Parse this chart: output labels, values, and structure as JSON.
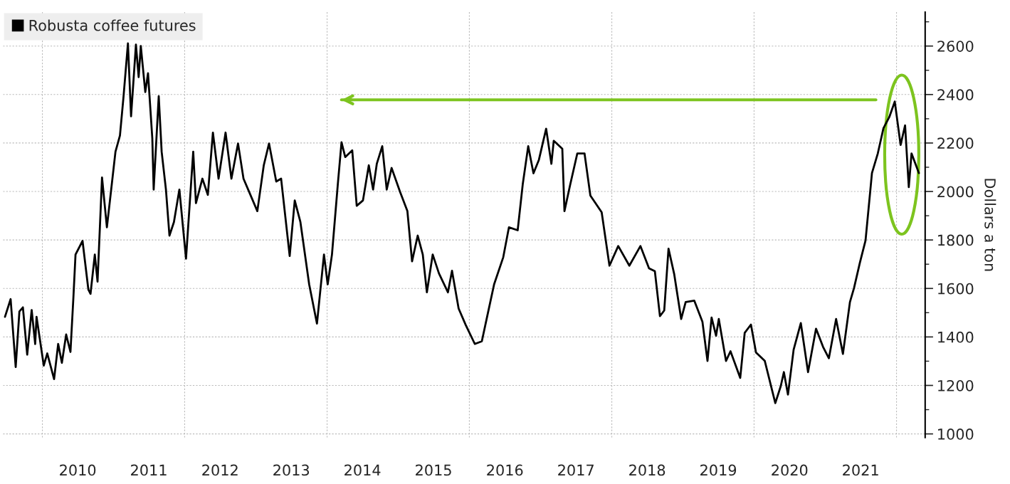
{
  "chart_data": {
    "type": "line",
    "ylabel": "Dollars a ton",
    "legend": "top left",
    "grid": true,
    "line_style": "solid",
    "xlim": [
      "2009-06-13",
      "2022-05-28"
    ],
    "ylim": [
      985,
      2740
    ],
    "xticks": [
      {
        "value": "2010-01-01",
        "label": null
      },
      {
        "value": "2012-01-01",
        "label": null
      },
      {
        "value": "2014-01-01",
        "label": null
      },
      {
        "value": "2016-01-01",
        "label": null
      },
      {
        "value": "2018-01-01",
        "label": null
      },
      {
        "value": "2020-01-01",
        "label": null
      },
      {
        "value": "2022-01-01",
        "label": null
      },
      {
        "value": "2010-07-01",
        "label": "2010"
      },
      {
        "value": "2011-07-01",
        "label": "2011"
      },
      {
        "value": "2012-07-01",
        "label": "2012"
      },
      {
        "value": "2013-07-01",
        "label": "2013"
      },
      {
        "value": "2014-07-01",
        "label": "2014"
      },
      {
        "value": "2015-07-01",
        "label": "2015"
      },
      {
        "value": "2016-07-01",
        "label": "2016"
      },
      {
        "value": "2017-07-01",
        "label": "2017"
      },
      {
        "value": "2018-07-01",
        "label": "2018"
      },
      {
        "value": "2019-07-01",
        "label": "2019"
      },
      {
        "value": "2020-07-01",
        "label": "2020"
      },
      {
        "value": "2021-07-01",
        "label": "2021"
      }
    ],
    "yticks": [
      1000,
      1200,
      1400,
      1600,
      1800,
      2000,
      2200,
      2400,
      2600,
      {
        "value": 1100,
        "label": null
      },
      {
        "value": 1300,
        "label": null
      },
      {
        "value": 1500,
        "label": null
      },
      {
        "value": 1700,
        "label": null
      },
      {
        "value": 1900,
        "label": null
      },
      {
        "value": 2100,
        "label": null
      },
      {
        "value": 2300,
        "label": null
      },
      {
        "value": 2500,
        "label": null
      },
      {
        "value": 2700,
        "label": null
      }
    ],
    "series": [
      {
        "name": "Robusta coffee futures",
        "color": "#000000",
        "x": [
          "2009-06-23",
          "2009-07-22",
          "2009-08-17",
          "2009-09-05",
          "2009-09-23",
          "2009-10-15",
          "2009-11-07",
          "2009-11-25",
          "2009-12-02",
          "2010-01-08",
          "2010-01-26",
          "2010-03-02",
          "2010-03-23",
          "2010-04-11",
          "2010-05-03",
          "2010-05-25",
          "2010-06-09",
          "2010-06-20",
          "2010-07-26",
          "2010-08-25",
          "2010-09-05",
          "2010-09-27",
          "2010-10-11",
          "2010-11-03",
          "2010-11-28",
          "2011-01-11",
          "2011-02-03",
          "2011-02-21",
          "2011-03-16",
          "2011-04-01",
          "2011-04-26",
          "2011-05-10",
          "2011-05-21",
          "2011-06-13",
          "2011-06-27",
          "2011-07-19",
          "2011-07-26",
          "2011-08-21",
          "2011-09-05",
          "2011-09-27",
          "2011-10-15",
          "2011-11-07",
          "2011-12-05",
          "2012-01-08",
          "2012-02-14",
          "2012-02-28",
          "2012-04-01",
          "2012-04-29",
          "2012-05-25",
          "2012-06-23",
          "2012-07-29",
          "2012-08-28",
          "2012-10-01",
          "2012-10-29",
          "2013-01-08",
          "2013-02-10",
          "2013-03-09",
          "2013-04-15",
          "2013-05-10",
          "2013-06-23",
          "2013-07-19",
          "2013-08-17",
          "2013-10-01",
          "2013-11-10",
          "2013-12-16",
          "2014-01-04",
          "2014-01-26",
          "2014-02-25",
          "2014-03-16",
          "2014-04-04",
          "2014-05-10",
          "2014-06-02",
          "2014-07-04",
          "2014-08-03",
          "2014-08-25",
          "2014-09-13",
          "2014-10-11",
          "2014-11-03",
          "2014-11-28",
          "2015-01-11",
          "2015-02-17",
          "2015-03-13",
          "2015-04-11",
          "2015-05-07",
          "2015-05-28",
          "2015-06-27",
          "2015-07-29",
          "2015-09-13",
          "2015-10-04",
          "2015-11-07",
          "2015-12-13",
          "2016-01-29",
          "2016-03-05",
          "2016-04-01",
          "2016-05-07",
          "2016-06-23",
          "2016-07-22",
          "2016-09-05",
          "2016-10-01",
          "2016-10-29",
          "2016-11-25",
          "2016-12-23",
          "2017-01-29",
          "2017-02-25",
          "2017-03-09",
          "2017-04-22",
          "2017-05-03",
          "2017-06-02",
          "2017-07-08",
          "2017-08-14",
          "2017-09-13",
          "2017-11-10",
          "2017-12-20",
          "2018-02-03",
          "2018-04-01",
          "2018-05-28",
          "2018-07-11",
          "2018-08-10",
          "2018-09-05",
          "2018-09-27",
          "2018-10-19",
          "2018-11-17",
          "2018-12-23",
          "2019-01-15",
          "2019-02-28",
          "2019-04-11",
          "2019-05-07",
          "2019-05-28",
          "2019-06-20",
          "2019-07-04",
          "2019-08-10",
          "2019-09-02",
          "2019-10-22",
          "2019-11-14",
          "2019-12-16",
          "2020-01-11",
          "2020-02-25",
          "2020-04-19",
          "2020-05-17",
          "2020-06-02",
          "2020-06-23",
          "2020-07-22",
          "2020-08-28",
          "2020-10-04",
          "2020-11-14",
          "2020-12-20",
          "2021-01-19",
          "2021-02-25",
          "2021-04-01",
          "2021-05-07",
          "2021-05-28",
          "2021-06-27",
          "2021-07-26",
          "2021-08-28",
          "2021-09-27",
          "2021-10-26",
          "2021-11-25",
          "2021-12-23",
          "2022-01-22",
          "2022-02-14",
          "2022-03-05",
          "2022-03-19",
          "2022-04-26"
        ],
        "values": [
          1483,
          1556,
          1276,
          1505,
          1522,
          1327,
          1511,
          1371,
          1483,
          1282,
          1332,
          1226,
          1371,
          1293,
          1410,
          1338,
          1561,
          1740,
          1796,
          1595,
          1578,
          1740,
          1628,
          2058,
          1852,
          2164,
          2231,
          2388,
          2611,
          2310,
          2606,
          2472,
          2600,
          2410,
          2488,
          2220,
          2008,
          2393,
          2164,
          2008,
          1818,
          1874,
          2008,
          1723,
          2164,
          1952,
          2053,
          1986,
          2243,
          2053,
          2243,
          2053,
          2198,
          2053,
          1919,
          2108,
          2198,
          2041,
          2053,
          1734,
          1963,
          1874,
          1617,
          1455,
          1740,
          1617,
          1740,
          2030,
          2203,
          2142,
          2170,
          1941,
          1963,
          2108,
          2008,
          2114,
          2187,
          2008,
          2097,
          1997,
          1919,
          1712,
          1818,
          1740,
          1584,
          1740,
          1662,
          1584,
          1673,
          1517,
          1450,
          1371,
          1382,
          1483,
          1617,
          1729,
          1852,
          1840,
          2030,
          2187,
          2075,
          2131,
          2259,
          2114,
          2209,
          2176,
          1919,
          2030,
          2157,
          2157,
          1983,
          1914,
          1694,
          1775,
          1694,
          1775,
          1683,
          1671,
          1486,
          1509,
          1764,
          1660,
          1474,
          1544,
          1550,
          1463,
          1301,
          1480,
          1405,
          1474,
          1301,
          1341,
          1231,
          1417,
          1451,
          1336,
          1301,
          1127,
          1197,
          1255,
          1162,
          1347,
          1457,
          1255,
          1434,
          1359,
          1312,
          1474,
          1330,
          1544,
          1602,
          1706,
          1798,
          2076,
          2157,
          2261,
          2307,
          2371,
          2192,
          2273,
          2018,
          2157,
          2076
        ]
      },
      {
        "type": "line",
        "color": "#7dc41f",
        "x": [
          "2021-09-17",
          "2014-03-16"
        ],
        "values": [
          2378,
          2378
        ]
      }
    ]
  }
}
